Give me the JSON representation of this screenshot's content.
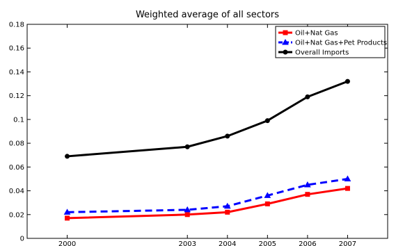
{
  "chart_data": {
    "type": "line",
    "title": "Weighted average of all sectors",
    "xlabel": "",
    "ylabel": "",
    "x": [
      2000,
      2003,
      2004,
      2005,
      2006,
      2007
    ],
    "xlim": [
      1999,
      2008
    ],
    "ylim": [
      0,
      0.18
    ],
    "yticks": [
      0,
      0.02,
      0.04,
      0.06,
      0.08,
      0.1,
      0.12,
      0.14,
      0.16,
      0.18
    ],
    "ytick_labels": [
      "0",
      "0.02",
      "0.04",
      "0.06",
      "0.08",
      "0.1",
      "0.12",
      "0.14",
      "0.16",
      "0.18"
    ],
    "grid": false,
    "legend_position": "top-right",
    "series": [
      {
        "name": "Oil+Nat Gas",
        "color": "#ff0000",
        "line_style": "solid",
        "marker": "square",
        "values": [
          0.017,
          0.02,
          0.022,
          0.029,
          0.037,
          0.042
        ]
      },
      {
        "name": "Oil+Nat Gas+Pet Products",
        "color": "#0000ff",
        "line_style": "dashed",
        "marker": "triangle",
        "values": [
          0.022,
          0.024,
          0.027,
          0.036,
          0.045,
          0.05
        ]
      },
      {
        "name": "Overall Imports",
        "color": "#000000",
        "line_style": "solid",
        "marker": "circle",
        "values": [
          0.069,
          0.077,
          0.086,
          0.099,
          0.119,
          0.132
        ]
      }
    ]
  }
}
